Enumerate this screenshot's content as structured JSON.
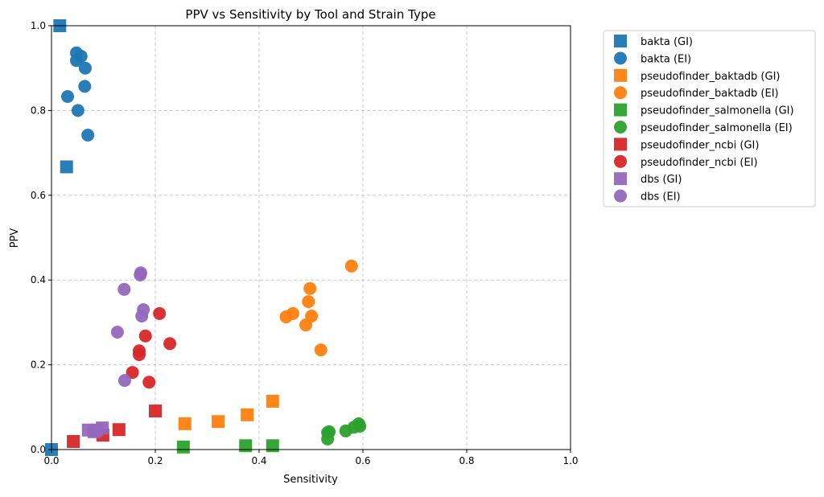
{
  "chart_data": {
    "type": "scatter",
    "title": "PPV vs Sensitivity by Tool and Strain Type",
    "xlabel": "Sensitivity",
    "ylabel": "PPV",
    "xlim": [
      0,
      1
    ],
    "ylim": [
      0,
      1
    ],
    "xticks": [
      "0.0",
      "0.2",
      "0.4",
      "0.6",
      "0.8",
      "1.0"
    ],
    "yticks": [
      "0.0",
      "0.2",
      "0.4",
      "0.6",
      "0.8",
      "1.0"
    ],
    "grid": true,
    "legend_placement": "outside-top-right",
    "series": [
      {
        "name": "bakta (GI)",
        "marker": "square",
        "color": "#1f77b4",
        "points": [
          [
            0.016,
            1.0
          ],
          [
            0.029,
            0.667
          ],
          [
            0.0,
            0.0
          ]
        ]
      },
      {
        "name": "bakta (EI)",
        "marker": "circle",
        "color": "#1f77b4",
        "points": [
          [
            0.048,
            0.936
          ],
          [
            0.057,
            0.928
          ],
          [
            0.048,
            0.918
          ],
          [
            0.065,
            0.9
          ],
          [
            0.064,
            0.857
          ],
          [
            0.031,
            0.833
          ],
          [
            0.051,
            0.8
          ],
          [
            0.07,
            0.742
          ]
        ]
      },
      {
        "name": "pseudofinder_baktadb (GI)",
        "marker": "square",
        "color": "#ff7f0e",
        "points": [
          [
            0.257,
            0.061
          ],
          [
            0.321,
            0.066
          ],
          [
            0.377,
            0.082
          ],
          [
            0.426,
            0.114
          ]
        ]
      },
      {
        "name": "pseudofinder_baktadb (EI)",
        "marker": "circle",
        "color": "#ff7f0e",
        "points": [
          [
            0.578,
            0.433
          ],
          [
            0.498,
            0.38
          ],
          [
            0.495,
            0.349
          ],
          [
            0.465,
            0.321
          ],
          [
            0.452,
            0.313
          ],
          [
            0.501,
            0.315
          ],
          [
            0.49,
            0.294
          ],
          [
            0.519,
            0.235
          ]
        ]
      },
      {
        "name": "pseudofinder_salmonella (GI)",
        "marker": "square",
        "color": "#2ca02c",
        "points": [
          [
            0.254,
            0.006
          ],
          [
            0.374,
            0.009
          ],
          [
            0.426,
            0.009
          ]
        ]
      },
      {
        "name": "pseudofinder_salmonella (EI)",
        "marker": "circle",
        "color": "#2ca02c",
        "points": [
          [
            0.532,
            0.04
          ],
          [
            0.532,
            0.025
          ],
          [
            0.567,
            0.044
          ],
          [
            0.583,
            0.053
          ],
          [
            0.592,
            0.061
          ],
          [
            0.594,
            0.055
          ],
          [
            0.535,
            0.042
          ]
        ]
      },
      {
        "name": "pseudofinder_ncbi (GI)",
        "marker": "square",
        "color": "#d62728",
        "points": [
          [
            0.042,
            0.019
          ],
          [
            0.099,
            0.034
          ],
          [
            0.13,
            0.047
          ],
          [
            0.2,
            0.091
          ]
        ]
      },
      {
        "name": "pseudofinder_ncbi (EI)",
        "marker": "circle",
        "color": "#d62728",
        "points": [
          [
            0.208,
            0.321
          ],
          [
            0.228,
            0.25
          ],
          [
            0.181,
            0.268
          ],
          [
            0.169,
            0.233
          ],
          [
            0.169,
            0.224
          ],
          [
            0.156,
            0.182
          ],
          [
            0.188,
            0.159
          ]
        ]
      },
      {
        "name": "dbs (GI)",
        "marker": "square",
        "color": "#9467bd",
        "points": [
          [
            0.071,
            0.046
          ],
          [
            0.082,
            0.042
          ],
          [
            0.098,
            0.051
          ],
          [
            0.087,
            0.046
          ]
        ]
      },
      {
        "name": "dbs (EI)",
        "marker": "circle",
        "color": "#9467bd",
        "points": [
          [
            0.172,
            0.417
          ],
          [
            0.171,
            0.412
          ],
          [
            0.14,
            0.378
          ],
          [
            0.177,
            0.33
          ],
          [
            0.174,
            0.315
          ],
          [
            0.127,
            0.277
          ],
          [
            0.141,
            0.163
          ]
        ]
      }
    ]
  }
}
